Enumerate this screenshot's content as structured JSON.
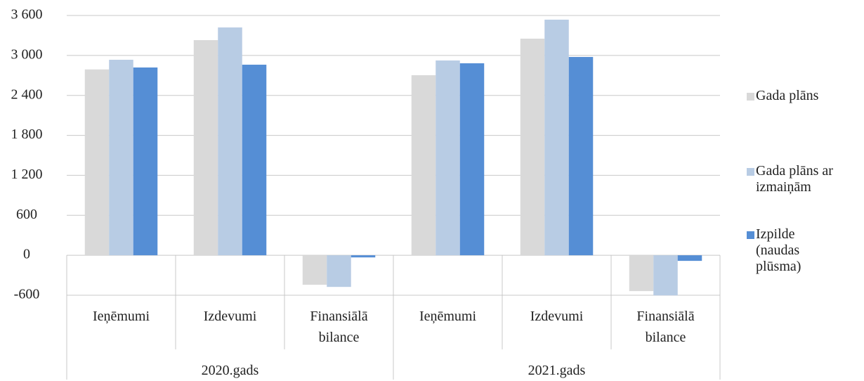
{
  "chart_data": {
    "type": "bar",
    "groups": [
      "2020.gads",
      "2021.gads"
    ],
    "categories": [
      "Ieņēmumi",
      "Izdevumi",
      "Finansiālā bilance",
      "Ieņēmumi",
      "Izdevumi",
      "Finansiālā bilance"
    ],
    "series": [
      {
        "name": "Gada plāns",
        "color": "#d9d9d9",
        "values": [
          2790,
          3230,
          -443,
          2703,
          3252,
          -538
        ]
      },
      {
        "name": "Gada plāns ar izmaiņām",
        "color": "#b8cce4",
        "values": [
          2935,
          3420,
          -475,
          2924,
          3537,
          -602
        ]
      },
      {
        "name": "Izpilde (naudas plūsma)",
        "color": "#558ed5",
        "values": [
          2819,
          2861,
          -32,
          2882,
          2977,
          -84
        ]
      }
    ],
    "ylim": [
      -600,
      3600
    ],
    "yticks": [
      -600,
      0,
      600,
      {
        "value": 1200,
        "label": "1 200"
      },
      {
        "value": 1800,
        "label": "1 800"
      },
      {
        "value": 2400,
        "label": "2 400"
      },
      {
        "value": 3000,
        "label": "3 000"
      },
      {
        "value": 3600,
        "label": "3 600"
      }
    ],
    "grid": true,
    "legend": "right"
  }
}
